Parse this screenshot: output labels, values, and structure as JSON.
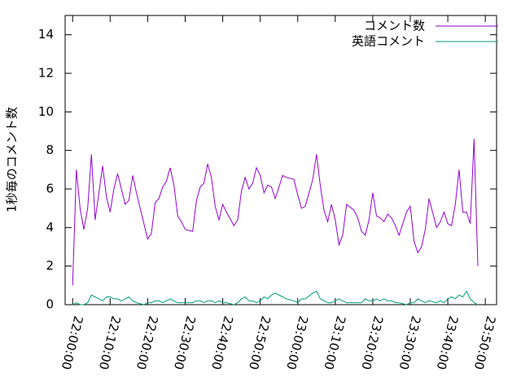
{
  "chart_data": {
    "type": "line",
    "ylabel": "1秒毎のコメント数",
    "x": [
      "22:00:00",
      "22:01:00",
      "22:02:00",
      "22:03:00",
      "22:04:00",
      "22:05:00",
      "22:06:00",
      "22:08:00",
      "22:09:00",
      "22:10:00",
      "22:11:00",
      "22:12:00",
      "22:13:00",
      "22:14:00",
      "22:15:00",
      "22:16:00",
      "22:17:00",
      "22:19:00",
      "22:20:00",
      "22:21:00",
      "22:22:00",
      "22:23:00",
      "22:24:00",
      "22:25:00",
      "22:26:00",
      "22:27:00",
      "22:28:00",
      "22:29:00",
      "22:30:00",
      "22:32:00",
      "22:33:00",
      "22:34:00",
      "22:35:00",
      "22:36:00",
      "22:37:00",
      "22:38:00",
      "22:39:00",
      "22:40:00",
      "22:41:00",
      "22:43:00",
      "22:44:00",
      "22:45:00",
      "22:46:00",
      "22:47:00",
      "22:48:00",
      "22:49:00",
      "22:50:00",
      "22:51:00",
      "22:52:00",
      "22:53:00",
      "22:54:00",
      "22:56:00",
      "22:57:00",
      "22:59:00",
      "23:00:00",
      "23:01:00",
      "23:02:00",
      "23:04:00",
      "23:05:00",
      "23:06:00",
      "23:07:00",
      "23:08:00",
      "23:09:00",
      "23:10:00",
      "23:11:00",
      "23:12:00",
      "23:13:00",
      "23:15:00",
      "23:16:00",
      "23:17:00",
      "23:18:00",
      "23:19:00",
      "23:20:00",
      "23:21:00",
      "23:22:00",
      "23:23:00",
      "23:24:00",
      "23:25:00",
      "23:26:00",
      "23:27:00",
      "23:29:00",
      "23:30:00",
      "23:31:00",
      "23:32:00",
      "23:33:00",
      "23:34:00",
      "23:35:00",
      "23:37:00",
      "23:38:00",
      "23:39:00",
      "23:40:00",
      "23:41:00",
      "23:42:00",
      "23:43:00",
      "23:44:00",
      "23:45:00",
      "23:46:00",
      "23:47:00",
      "23:48:00"
    ],
    "series": [
      {
        "name": "コメント数",
        "color": "#9400d3",
        "values": [
          1.0,
          7.0,
          5.0,
          3.9,
          5.0,
          7.8,
          4.4,
          7.2,
          5.6,
          4.8,
          6.0,
          6.8,
          6.0,
          5.2,
          5.4,
          6.7,
          5.8,
          4.2,
          3.4,
          3.7,
          5.3,
          5.5,
          6.1,
          6.4,
          7.1,
          6.2,
          4.6,
          4.3,
          3.9,
          3.8,
          5.4,
          6.1,
          6.3,
          7.3,
          6.6,
          5.1,
          4.4,
          5.2,
          4.8,
          4.1,
          4.4,
          5.9,
          6.6,
          6.0,
          6.3,
          7.1,
          6.7,
          5.8,
          6.2,
          6.1,
          5.5,
          6.7,
          6.6,
          6.5,
          5.7,
          5.0,
          5.1,
          6.5,
          7.8,
          6.2,
          4.9,
          4.3,
          5.2,
          4.4,
          3.1,
          3.6,
          5.2,
          4.9,
          4.5,
          3.8,
          3.6,
          4.4,
          5.8,
          4.6,
          4.5,
          4.3,
          4.7,
          4.5,
          4.1,
          3.6,
          4.8,
          5.1,
          3.3,
          2.7,
          3.0,
          3.9,
          5.5,
          4.0,
          4.3,
          4.8,
          4.2,
          4.1,
          5.2,
          7.0,
          4.8,
          4.8,
          4.2,
          8.6,
          2.0
        ]
      },
      {
        "name": "英語コメント",
        "color": "#009e73",
        "values": [
          0.0,
          0.1,
          0.0,
          0.0,
          0.1,
          0.5,
          0.4,
          0.2,
          0.4,
          0.4,
          0.3,
          0.3,
          0.2,
          0.3,
          0.4,
          0.2,
          0.1,
          0.0,
          0.1,
          0.1,
          0.2,
          0.2,
          0.1,
          0.2,
          0.3,
          0.2,
          0.1,
          0.1,
          0.1,
          0.1,
          0.2,
          0.2,
          0.1,
          0.2,
          0.2,
          0.1,
          0.2,
          0.1,
          0.1,
          0.0,
          0.1,
          0.3,
          0.4,
          0.2,
          0.2,
          0.1,
          0.2,
          0.4,
          0.3,
          0.5,
          0.6,
          0.4,
          0.3,
          0.2,
          0.1,
          0.3,
          0.3,
          0.6,
          0.7,
          0.3,
          0.2,
          0.1,
          0.1,
          0.2,
          0.3,
          0.2,
          0.1,
          0.1,
          0.1,
          0.1,
          0.3,
          0.2,
          0.2,
          0.3,
          0.2,
          0.3,
          0.2,
          0.2,
          0.1,
          0.1,
          0.0,
          0.1,
          0.1,
          0.3,
          0.2,
          0.1,
          0.2,
          0.1,
          0.2,
          0.1,
          0.3,
          0.4,
          0.3,
          0.5,
          0.4,
          0.7,
          0.3,
          0.1,
          0.0
        ]
      }
    ],
    "xlim": [
      "21:58:00",
      "23:53:00"
    ],
    "xticks": [
      "22:00:00",
      "22:10:00",
      "22:20:00",
      "22:30:00",
      "22:40:00",
      "22:50:00",
      "23:00:00",
      "23:10:00",
      "23:20:00",
      "23:30:00",
      "23:40:00",
      "23:50:00"
    ],
    "ylim": [
      0,
      15
    ],
    "yticks": [
      0,
      2,
      4,
      6,
      8,
      10,
      12,
      14
    ],
    "legend": "top-right"
  }
}
